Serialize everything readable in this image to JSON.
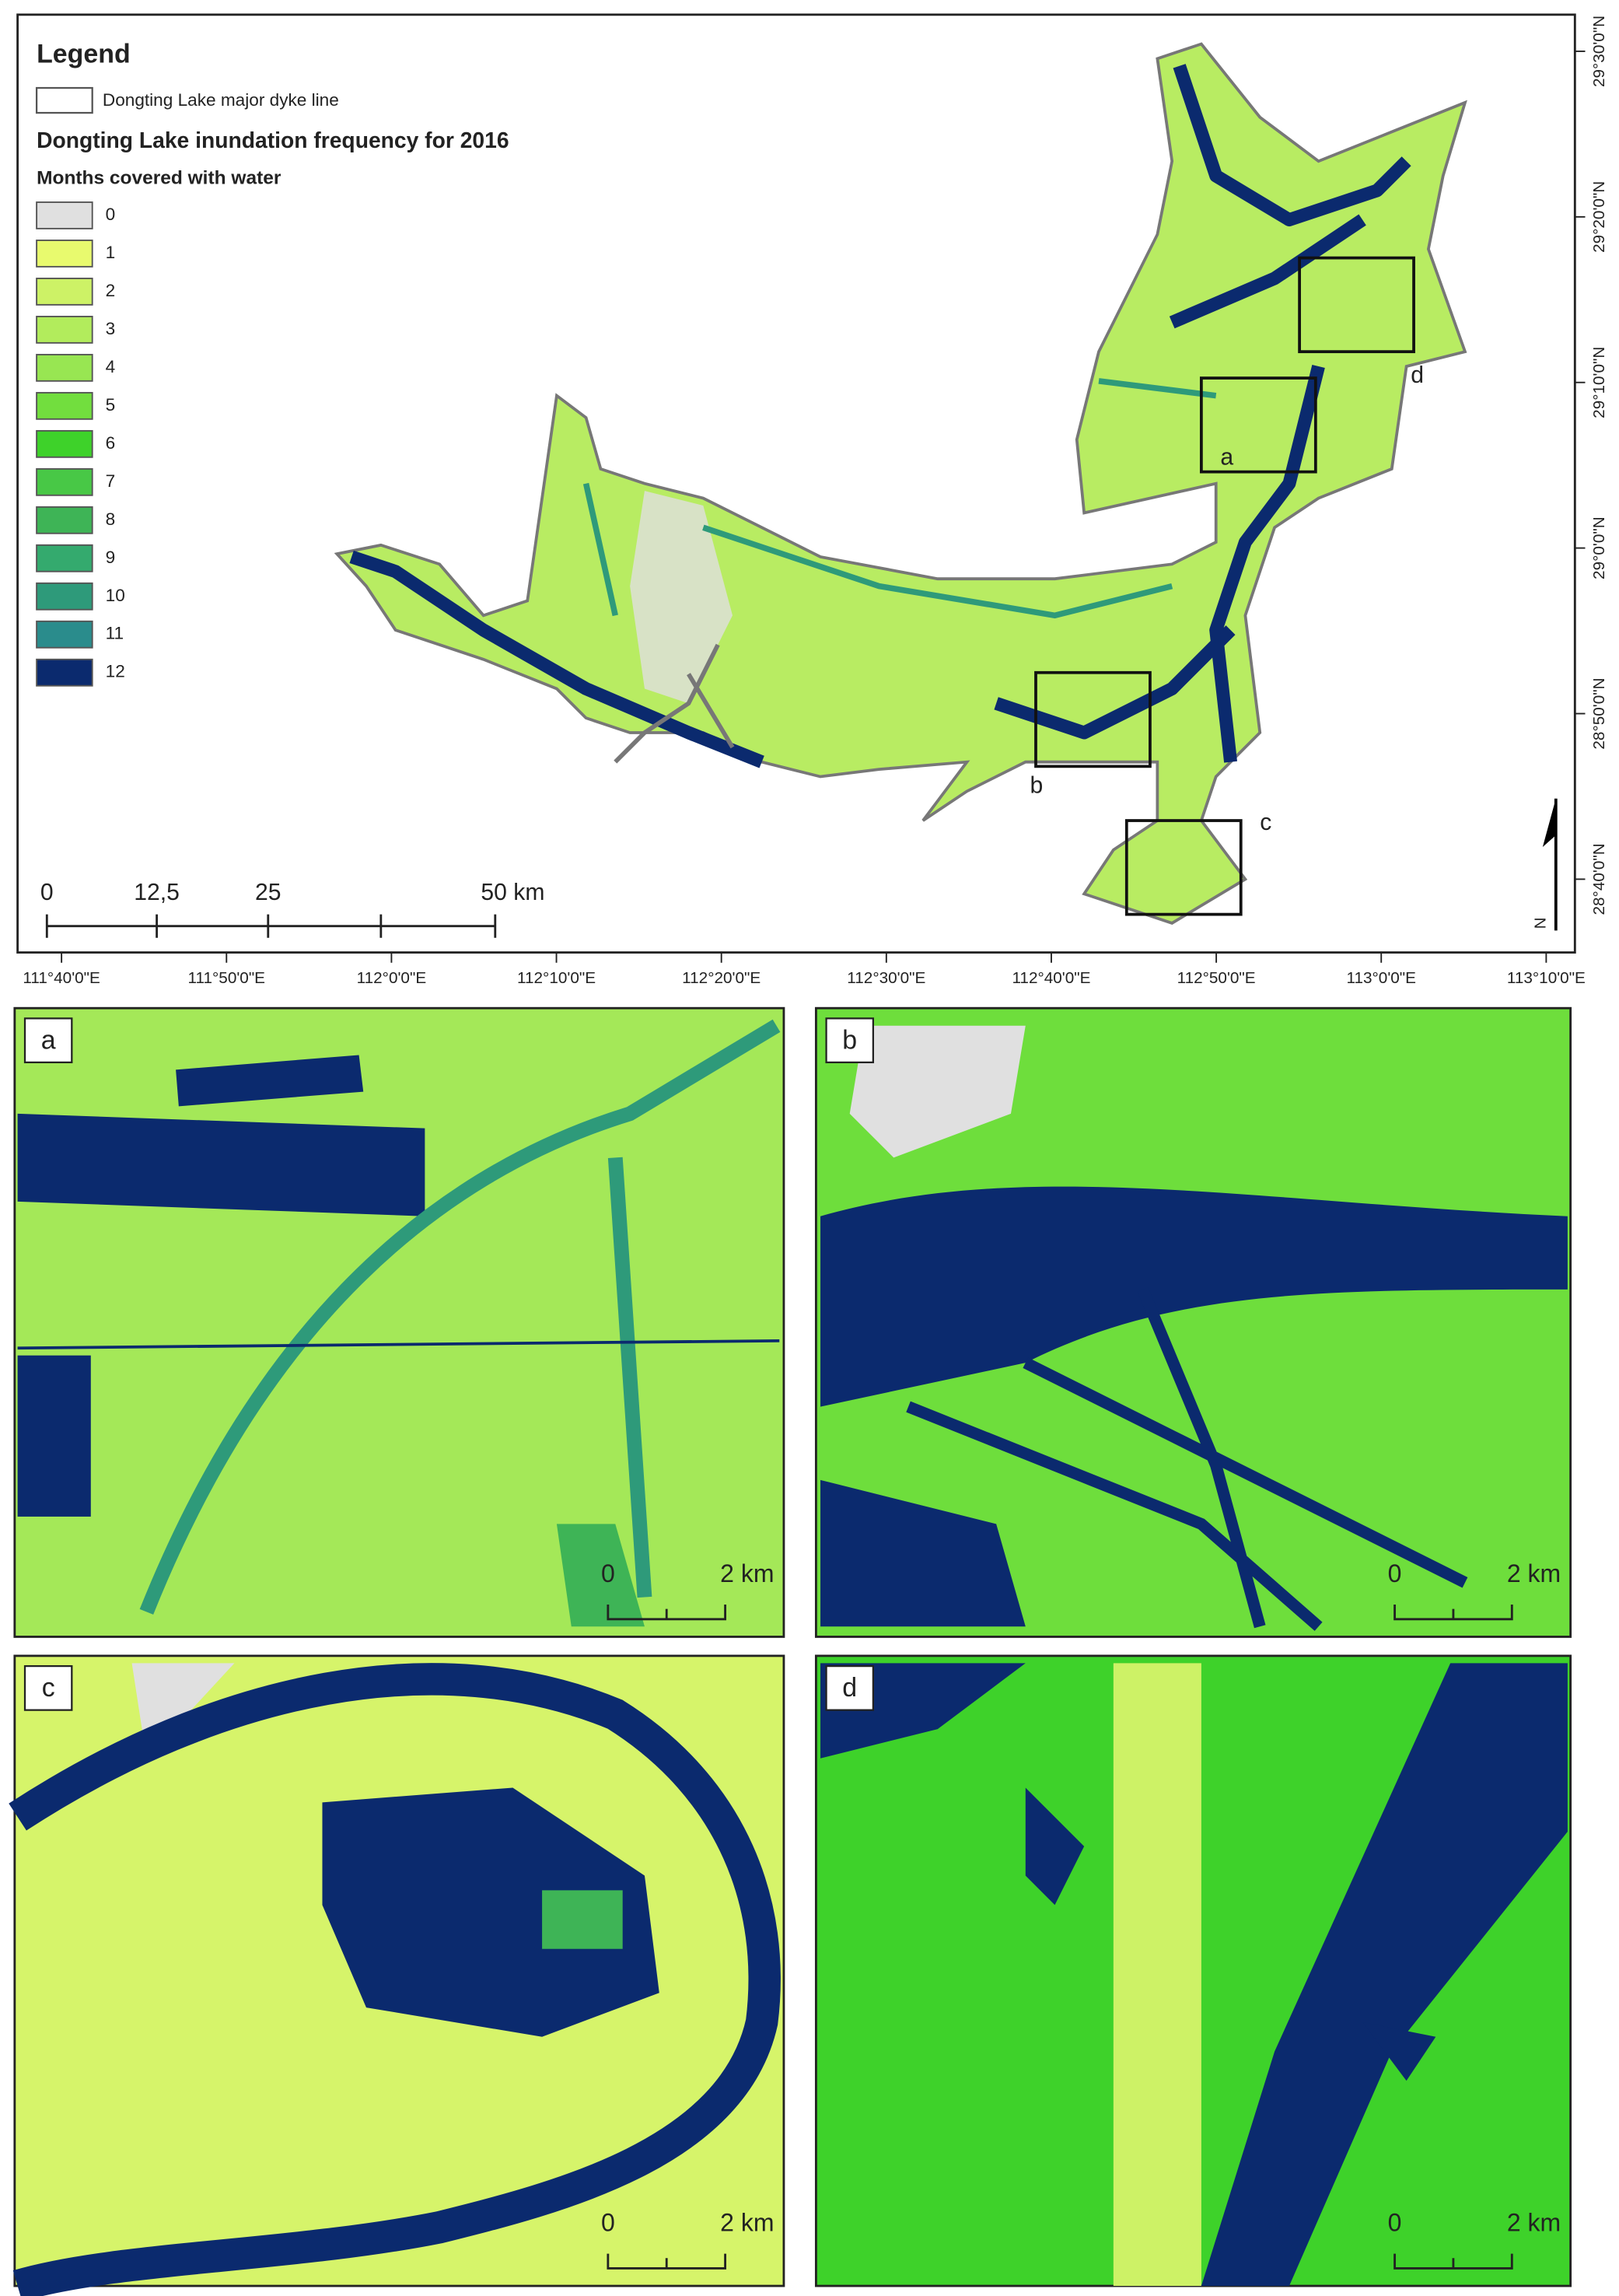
{
  "legend": {
    "title": "Legend",
    "dyke_line": "Dongting Lake major dyke line",
    "frequency_title": "Dongting Lake inundation frequency for 2016",
    "months_title": "Months covered with water",
    "classes": [
      {
        "label": "0",
        "color": "#e0e0e0"
      },
      {
        "label": "1",
        "color": "#e8fa6e"
      },
      {
        "label": "2",
        "color": "#cdf266"
      },
      {
        "label": "3",
        "color": "#b2ec5c"
      },
      {
        "label": "4",
        "color": "#98e652"
      },
      {
        "label": "5",
        "color": "#72de3e"
      },
      {
        "label": "6",
        "color": "#3ed22a"
      },
      {
        "label": "7",
        "color": "#48c846"
      },
      {
        "label": "8",
        "color": "#3eb456"
      },
      {
        "label": "9",
        "color": "#34aa6e"
      },
      {
        "label": "10",
        "color": "#2e9a7a"
      },
      {
        "label": "11",
        "color": "#2a8c8c"
      },
      {
        "label": "12",
        "color": "#0b2a6e"
      }
    ]
  },
  "scale_bar": [
    "0",
    "12,5",
    "25",
    "50 km"
  ],
  "latitude_labels": [
    "29°30'0\"N",
    "29°20'0\"N",
    "29°10'0\"N",
    "29°0'0\"N",
    "28°50'0\"N",
    "28°40'0\"N"
  ],
  "longitude_labels": [
    "111°40'0\"E",
    "111°50'0\"E",
    "112°0'0\"E",
    "112°10'0\"E",
    "112°20'0\"E",
    "112°30'0\"E",
    "112°40'0\"E",
    "112°50'0\"E",
    "113°0'0\"E",
    "113°10'0\"E"
  ],
  "north_arrow": "N",
  "inset_boxes": [
    "a",
    "b",
    "c",
    "d"
  ],
  "panels": [
    {
      "label": "a",
      "scale_bar": [
        "0",
        "2 km"
      ]
    },
    {
      "label": "b",
      "scale_bar": [
        "0",
        "2 km"
      ]
    },
    {
      "label": "c",
      "scale_bar": [
        "0",
        "2 km"
      ]
    },
    {
      "label": "d",
      "scale_bar": [
        "0",
        "2 km"
      ]
    }
  ]
}
